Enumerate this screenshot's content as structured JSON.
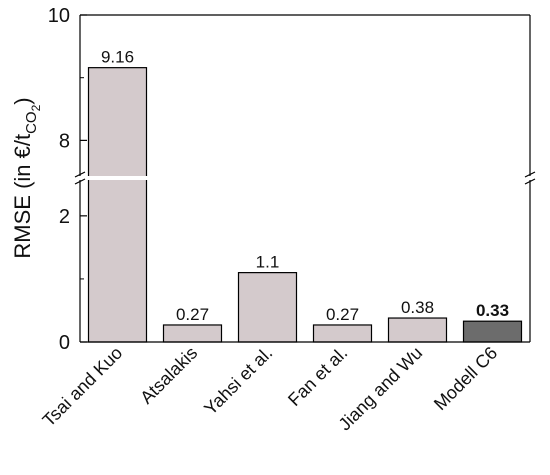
{
  "chart_data": {
    "type": "bar",
    "categories": [
      "Tsai and Kuo",
      "Atsalakis",
      "Yahsi et al.",
      "Fan et al.",
      "Jiang and Wu",
      "Modell C6"
    ],
    "values": [
      9.16,
      0.27,
      1.1,
      0.27,
      0.38,
      0.33
    ],
    "data_labels": [
      "9.16",
      "0.27",
      "1.1",
      "0.27",
      "0.38",
      "0.33"
    ],
    "highlight_index": 5,
    "ylabel_main": "RMSE (in €/t",
    "ylabel_sub": "CO",
    "ylabel_subsub": "2",
    "ylabel_close": ")",
    "broken_axis": true,
    "lower_range": [
      0,
      2.6
    ],
    "upper_range": [
      7.4,
      10
    ],
    "yticks": [
      0,
      2,
      8,
      10
    ],
    "ytick_labels": [
      "0",
      "2",
      "8",
      "10"
    ],
    "grid": false,
    "colors": {
      "bar": "#d4cacc",
      "bar_highlight": "#6c6c6c",
      "axis": "#000000"
    }
  }
}
